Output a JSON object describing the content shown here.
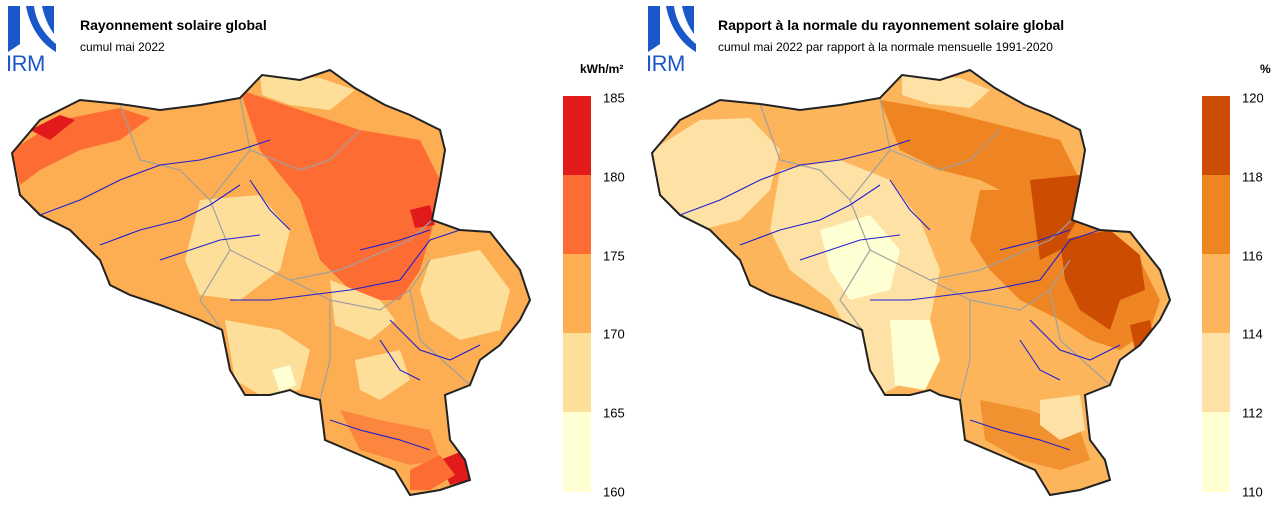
{
  "org_logo_text": "IRM",
  "panels": [
    {
      "title": "Rayonnement solaire global",
      "subtitle": "cumul mai 2022",
      "unit": "kWh/m²",
      "legend": {
        "ticks": [
          "185",
          "180",
          "175",
          "170",
          "165",
          "160"
        ],
        "colors": [
          "#e31a1c",
          "#fd6d33",
          "#fdad52",
          "#fedf9a",
          "#ffffd4"
        ]
      }
    },
    {
      "title": "Rapport à la normale du rayonnement solaire global",
      "subtitle": "cumul mai 2022 par rapport à la normale mensuelle 1991-2020",
      "unit": "%",
      "legend": {
        "ticks": [
          "120",
          "118",
          "116",
          "114",
          "112",
          "110"
        ],
        "colors": [
          "#cc4c02",
          "#ee8522",
          "#fdb55c",
          "#fee1a5",
          "#ffffd4"
        ]
      }
    }
  ],
  "colors": {
    "logo_blue": "#1a57c8",
    "border": "#222222",
    "rivers": "#2020d0",
    "province_lines": "#a0a0a0"
  }
}
